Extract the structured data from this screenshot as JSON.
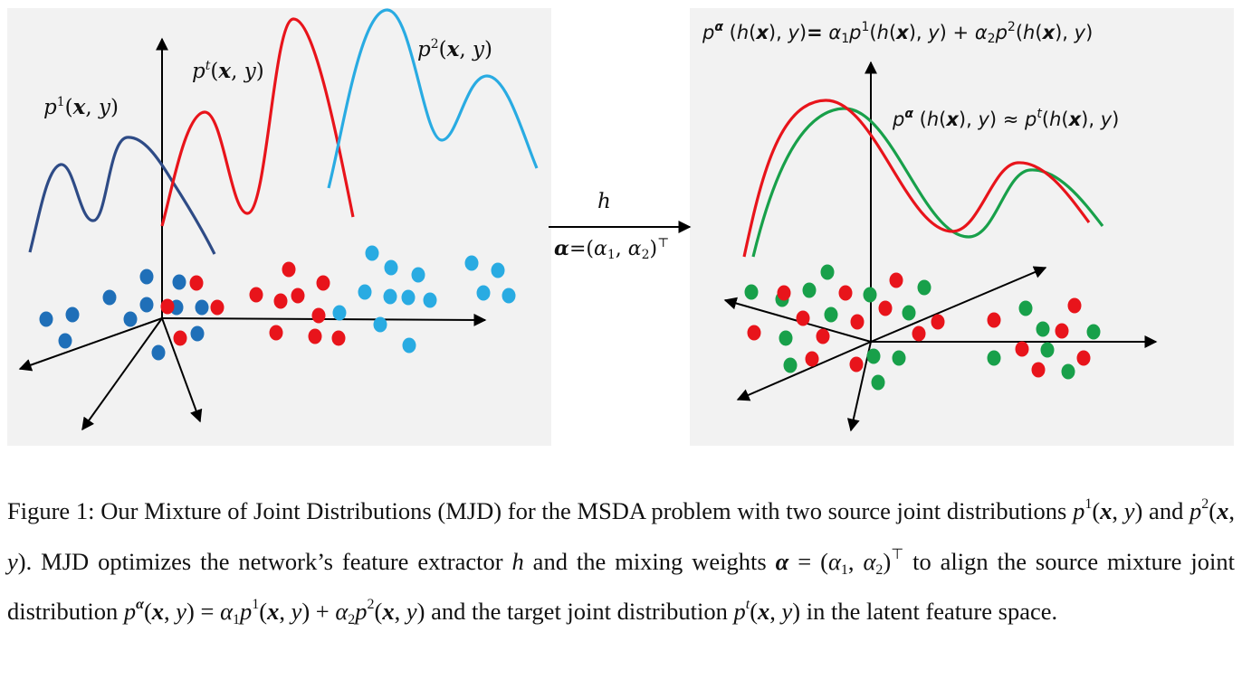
{
  "labels": {
    "p1": "p1(x,y)",
    "pt": "pt(x,y)",
    "p2": "p2(x,y)",
    "h": "h",
    "alpha_def": "α=(α1,α2)⊤",
    "mixture_eq": "pα (h(x),y)= α1p1(h(x),y) + α2p2(h(x),y)",
    "approx_eq": "pα (h(x),y) ≈ pt(h(x),y)"
  },
  "caption": "Figure 1: Our Mixture of Joint Distributions (MJD) for the MSDA problem with two source joint distributions p1(x,y) and p2(x,y). MJD optimizes the network's feature extractor h and the mixing weights α = (α1,α2)⊤ to align the source mixture joint distribution pα(x,y) = α1p1(x,y) + α2p2(x,y) and the target joint distribution pt(x,y) in the latent feature space.",
  "colors": {
    "source1": "#1f6fb8",
    "source2": "#29abe2",
    "target": "#e8141b",
    "mixture": "#18a04a",
    "source1_curve": "#2e4b86",
    "panel_bg": "#f2f2f2"
  },
  "icons": {
    "mapping_arrow": "right-arrow-icon"
  }
}
